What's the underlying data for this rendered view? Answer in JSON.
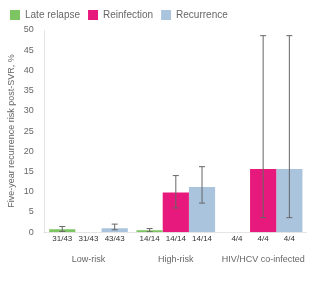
{
  "chart_data": {
    "type": "bar",
    "categories": [
      "Low-risk",
      "High-risk",
      "HIV/HCV co-infected"
    ],
    "series": [
      {
        "name": "Late relapse",
        "color": "#7dc462",
        "values": [
          0.7,
          0.5,
          0.0
        ],
        "error_low": [
          0.5,
          0.4,
          0.0
        ],
        "error_high": [
          0.7,
          0.4,
          0.0
        ]
      },
      {
        "name": "Reinfection",
        "color": "#e8197c",
        "values": [
          0.0,
          9.8,
          15.6
        ],
        "error_low": [
          0.0,
          3.8,
          12.0
        ],
        "error_high": [
          0.0,
          4.2,
          33.0
        ]
      },
      {
        "name": "Recurrence",
        "color": "#aac4de",
        "values": [
          1.0,
          11.2,
          15.6
        ],
        "error_low": [
          0.4,
          4.0,
          12.0
        ],
        "error_high": [
          1.0,
          5.0,
          33.0
        ]
      }
    ],
    "ylabel": "Five-year recurrence risk post-SVR, %",
    "ylim": [
      0,
      50
    ],
    "yticks": [
      0,
      5,
      10,
      15,
      20,
      25,
      30,
      35,
      40,
      45,
      50
    ],
    "grid": false,
    "legend": "upper left",
    "annotations": [
      {
        "text": "31/43",
        "category": "Low-risk",
        "series": "Late relapse"
      },
      {
        "text": "31/43",
        "category": "Low-risk",
        "series": "Reinfection"
      },
      {
        "text": "43/43",
        "category": "Low-risk",
        "series": "Recurrence"
      },
      {
        "text": "14/14",
        "category": "High-risk",
        "series": "Late relapse"
      },
      {
        "text": "14/14",
        "category": "High-risk",
        "series": "Reinfection"
      },
      {
        "text": "14/14",
        "category": "High-risk",
        "series": "Recurrence"
      },
      {
        "text": "4/4",
        "category": "HIV/HCV co-infected",
        "series": "Late relapse"
      },
      {
        "text": "4/4",
        "category": "HIV/HCV co-infected",
        "series": "Reinfection"
      },
      {
        "text": "4/4",
        "category": "HIV/HCV co-infected",
        "series": "Recurrence"
      }
    ]
  }
}
